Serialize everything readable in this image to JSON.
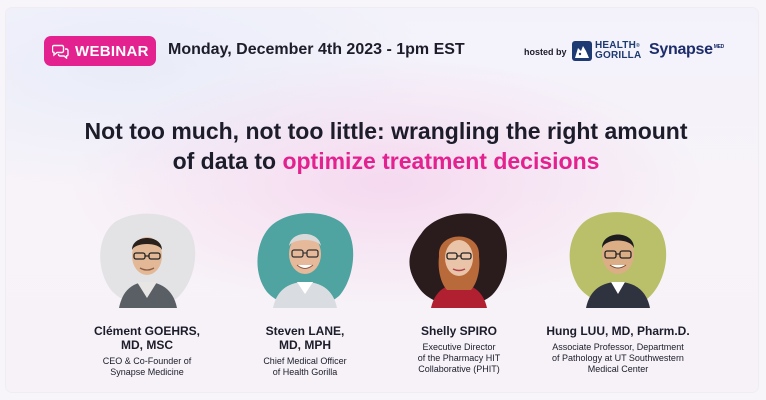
{
  "badge": {
    "label": "WEBINAR",
    "icon": "chat-bubbles-icon"
  },
  "event": {
    "date": "Monday, December 4th 2023 - 1pm EST"
  },
  "hosts": {
    "hosted_by": "hosted by",
    "health_gorilla": {
      "line1": "HEALTH",
      "line2": "GORILLA",
      "reg": "®"
    },
    "synapse": {
      "name": "Synapse",
      "sup": "MED"
    }
  },
  "title": {
    "part1": "Not too much, not too little: wrangling the right amount",
    "part2": "of data to ",
    "highlight": "optimize treatment decisions"
  },
  "colors": {
    "accent": "#e3218f",
    "text": "#1c1c2a",
    "brand_navy": "#1d2d6b"
  },
  "speakers": [
    {
      "name_line1": "Clément GOEHRS,",
      "name_line2": "MD, MSC",
      "role_lines": [
        "CEO & Co-Founder of",
        "Synapse Medicine"
      ],
      "photo_bg": "#e3e2e5"
    },
    {
      "name_line1": "Steven LANE,",
      "name_line2": "MD, MPH",
      "role_lines": [
        "Chief Medical Officer",
        "of Health Gorilla"
      ],
      "photo_bg": "#4fa3a0"
    },
    {
      "name_line1": "Shelly SPIRO",
      "name_line2": "",
      "role_lines": [
        "Executive Director",
        "of the Pharmacy HIT",
        "Collaborative (PHIT)"
      ],
      "photo_bg": "#2a1c1d"
    },
    {
      "name_line1": "Hung LUU, MD, Pharm.D.",
      "name_line2": "",
      "role_lines": [
        "Associate Professor, Department",
        "of Pathology at UT Southwestern",
        "Medical Center"
      ],
      "photo_bg": "#b9c069"
    }
  ]
}
